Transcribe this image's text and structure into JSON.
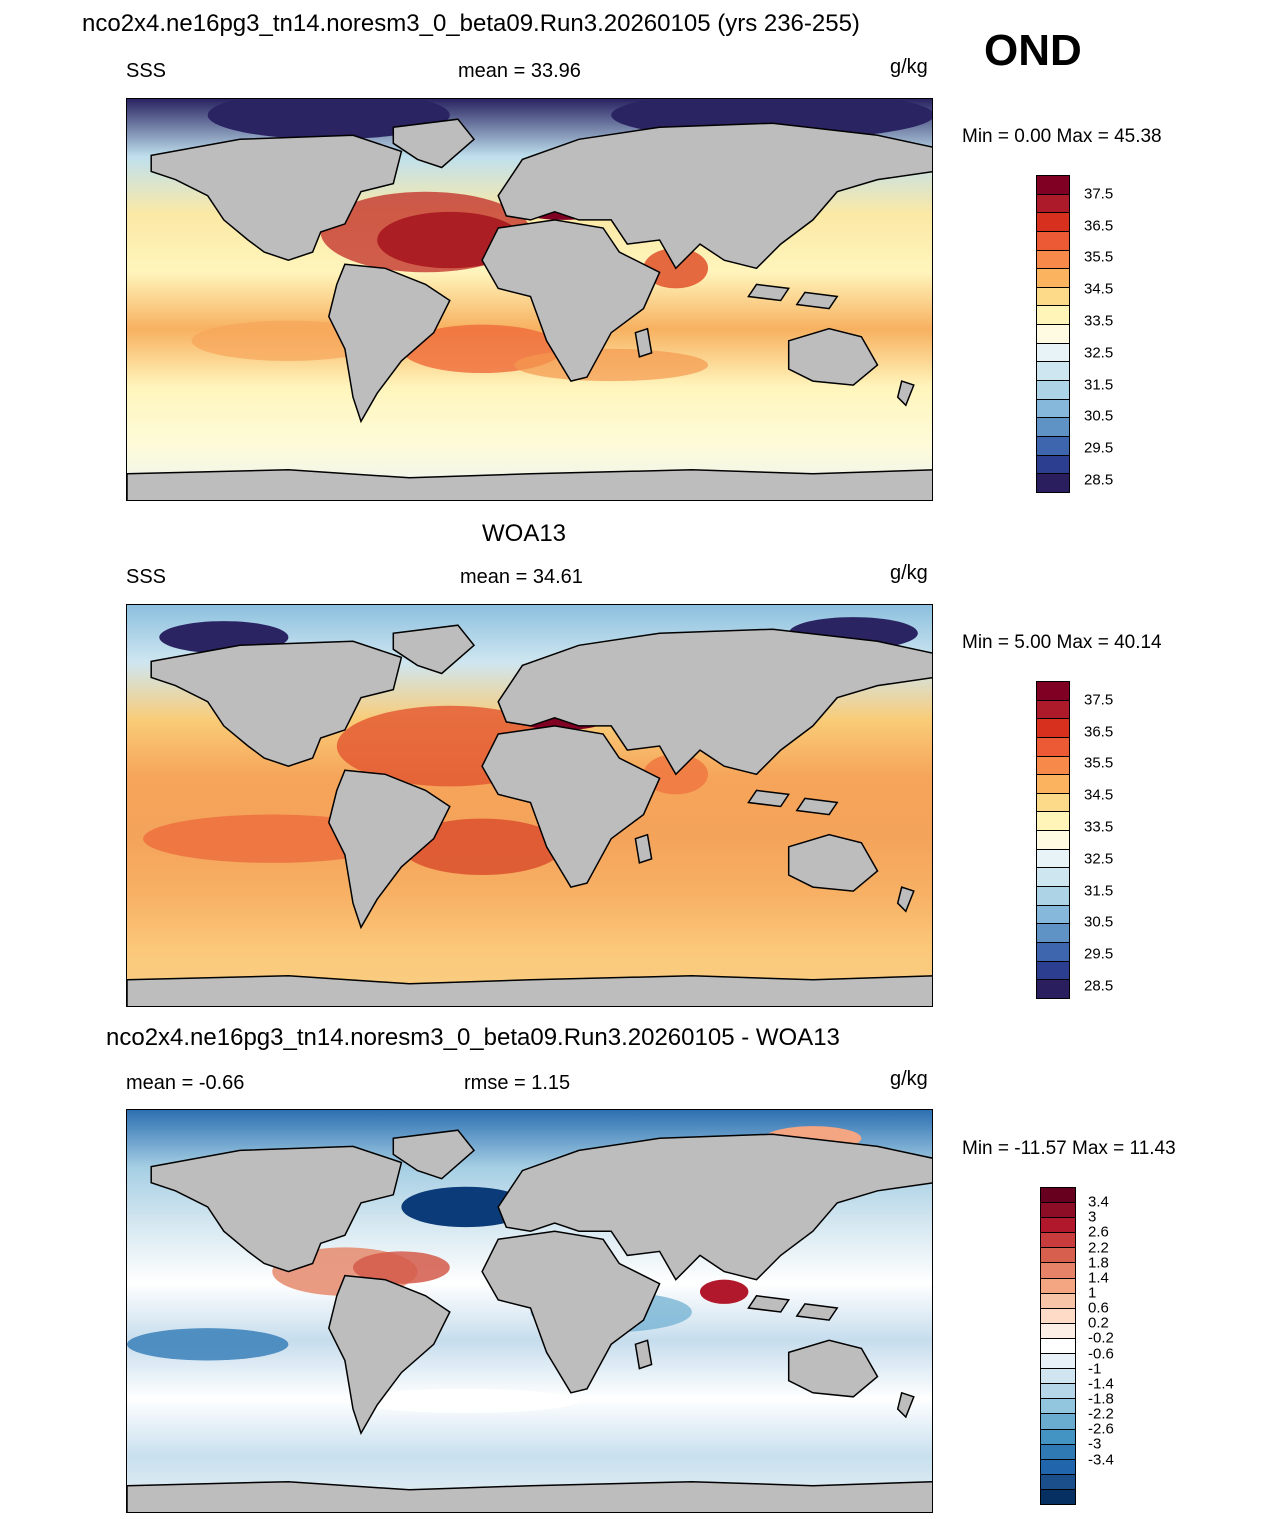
{
  "figure": {
    "title": "nco2x4.ne16pg3_tn14.noresm3_0_beta09.Run3.20260105 (yrs 236-255)",
    "season": "OND"
  },
  "panels": [
    {
      "title": "",
      "left_label": "SSS",
      "center_label": "mean =  33.96",
      "units": "g/kg",
      "minmax": "Min =   0.00 Max =  45.38",
      "colorbar": {
        "colors": [
          "#7f0022",
          "#ad1a2a",
          "#d7301f",
          "#ec5a35",
          "#f78a4a",
          "#fbb360",
          "#fdd98a",
          "#fff5b8",
          "#fefbe2",
          "#e7f3f6",
          "#cde6f0",
          "#acd3e6",
          "#86b8db",
          "#5f93c6",
          "#3d66ae",
          "#2b3e8f",
          "#2a1e5e"
        ],
        "tick_labels": [
          "37.5",
          "36.5",
          "35.5",
          "34.5",
          "33.5",
          "32.5",
          "31.5",
          "30.5",
          "29.5",
          "28.5"
        ]
      }
    },
    {
      "title": "WOA13",
      "left_label": "SSS",
      "center_label": "mean =  34.61",
      "units": "g/kg",
      "minmax": "Min =   5.00 Max =  40.14",
      "colorbar": {
        "colors": [
          "#7f0022",
          "#ad1a2a",
          "#d7301f",
          "#ec5a35",
          "#f78a4a",
          "#fbb360",
          "#fdd98a",
          "#fff5b8",
          "#fefbe2",
          "#e7f3f6",
          "#cde6f0",
          "#acd3e6",
          "#86b8db",
          "#5f93c6",
          "#3d66ae",
          "#2b3e8f",
          "#2a1e5e"
        ],
        "tick_labels": [
          "37.5",
          "36.5",
          "35.5",
          "34.5",
          "33.5",
          "32.5",
          "31.5",
          "30.5",
          "29.5",
          "28.5"
        ]
      }
    },
    {
      "title": "nco2x4.ne16pg3_tn14.noresm3_0_beta09.Run3.20260105 - WOA13",
      "left_label": "mean =  -0.66",
      "center_label": "rmse =   1.15",
      "units": "g/kg",
      "minmax": "Min = -11.57 Max =  11.43",
      "colorbar": {
        "colors": [
          "#67001f",
          "#8c0d25",
          "#b2182b",
          "#c83c3d",
          "#d6604d",
          "#e58267",
          "#f4a582",
          "#f8c4a8",
          "#fddbc7",
          "#fdeee5",
          "#ffffff",
          "#e8f1f7",
          "#d1e5f0",
          "#b5d5e8",
          "#92c5de",
          "#6aacd0",
          "#4393c3",
          "#2f79b5",
          "#2166ac",
          "#1a4f8b",
          "#053061"
        ],
        "tick_labels": [
          "3.4",
          "3",
          "2.6",
          "2.2",
          "1.8",
          "1.4",
          "1",
          "0.6",
          "0.2",
          "-0.2",
          "-0.6",
          "-1",
          "-1.4",
          "-1.8",
          "-2.2",
          "-2.6",
          "-3",
          "-3.4"
        ]
      }
    }
  ],
  "colors": {
    "land": "#bdbdbd",
    "coast": "#000000"
  }
}
